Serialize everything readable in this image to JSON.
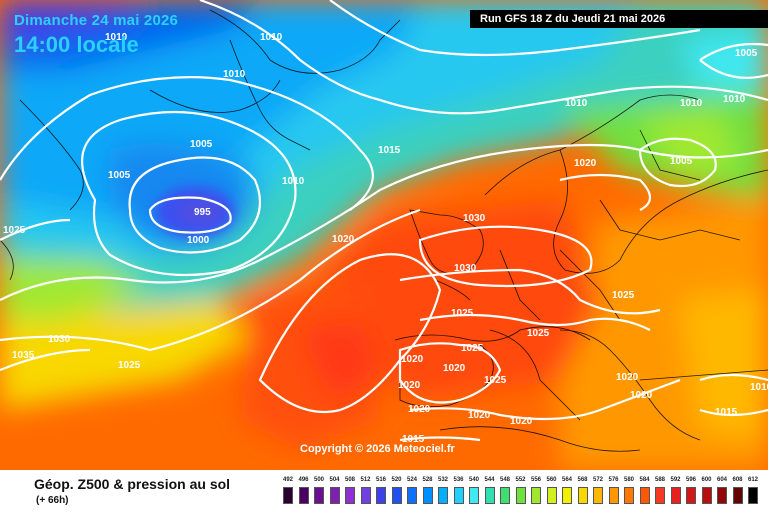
{
  "header": {
    "date": "Dimanche 24 mai 2026",
    "time": "14:00 locale",
    "run": "Run GFS 18 Z du Jeudi 21 mai 2026"
  },
  "copyright": "Copyright © 2026 Meteociel.fr",
  "footer": {
    "title": "Géop. Z500 & pression au sol",
    "subtitle": "(+ 66h)"
  },
  "legend": {
    "labels": [
      "492",
      "496",
      "500",
      "504",
      "508",
      "512",
      "516",
      "520",
      "524",
      "528",
      "532",
      "536",
      "540",
      "544",
      "548",
      "552",
      "556",
      "560",
      "564",
      "568",
      "572",
      "576",
      "580",
      "584",
      "588",
      "592",
      "596",
      "600",
      "604",
      "608",
      "612"
    ],
    "colors": [
      "#2a0030",
      "#4a0060",
      "#6a1090",
      "#8020b0",
      "#9030d0",
      "#7040e0",
      "#4040e8",
      "#2050f0",
      "#1070f8",
      "#0090ff",
      "#00b0ff",
      "#20d0ff",
      "#40e8f0",
      "#30e0b0",
      "#40e070",
      "#70e040",
      "#a0e830",
      "#d0f020",
      "#f0f000",
      "#f8d800",
      "#ffb800",
      "#ff9800",
      "#ff7800",
      "#ff5800",
      "#f83820",
      "#e82020",
      "#d01818",
      "#b81010",
      "#900808",
      "#600404",
      "#000000"
    ]
  },
  "isobars": {
    "labels": [
      "1010",
      "1010",
      "1015",
      "1005",
      "1010",
      "1005",
      "1010",
      "1005",
      "995",
      "1000",
      "1015",
      "1010",
      "1020",
      "1005",
      "1010",
      "1010",
      "1025",
      "1020",
      "1030",
      "1030",
      "1035",
      "1030",
      "1025",
      "1025",
      "1025",
      "1025",
      "1025",
      "1020",
      "1020",
      "1020",
      "1025",
      "1020",
      "1020",
      "1020",
      "1020",
      "1015",
      "1015",
      "1010",
      "1020"
    ]
  }
}
